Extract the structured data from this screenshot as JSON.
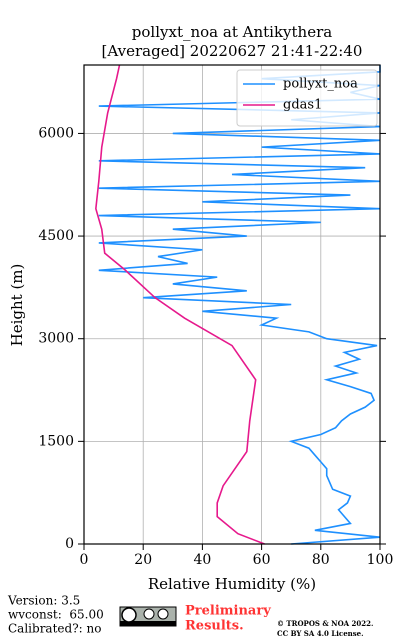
{
  "chart_data": {
    "type": "line",
    "title": "pollyxt_noa at Antikythera",
    "subtitle": "[Averaged] 20220627 21:41-22:40",
    "xlabel": "Relative Humidity (%)",
    "ylabel": "Height (m)",
    "xlim": [
      0,
      100
    ],
    "xticks": [
      0,
      20,
      40,
      60,
      80,
      100
    ],
    "ylim": [
      0,
      7000
    ],
    "yticks": [
      0,
      1500,
      3000,
      4500,
      6000
    ],
    "grid": true,
    "legend": "upper right",
    "series": [
      {
        "name": "pollyxt_noa",
        "color": "#1e90ff",
        "heights": [
          0,
          100,
          200,
          300,
          400,
          500,
          600,
          700,
          800,
          900,
          1000,
          1100,
          1200,
          1300,
          1400,
          1500,
          1600,
          1700,
          1800,
          1900,
          2000,
          2100,
          2200,
          2300,
          2400,
          2500,
          2600,
          2700,
          2800,
          2900,
          3000,
          3100,
          3200,
          3300,
          3400,
          3500,
          3600,
          3700,
          3800,
          3900,
          4000,
          4100,
          4200,
          4300,
          4400,
          4500,
          4600,
          4700,
          4800,
          4900,
          5000,
          5100,
          5200,
          5300,
          5400,
          5500,
          5600,
          5700,
          5800,
          5900,
          6000,
          6100,
          6200,
          6300,
          6400,
          6500,
          6600,
          6700,
          6800,
          6900,
          7000
        ],
        "values": [
          70,
          100,
          78,
          90,
          88,
          86,
          89,
          90,
          84,
          83,
          82,
          82,
          80,
          78,
          76,
          70,
          80,
          85,
          87,
          90,
          95,
          98,
          97,
          90,
          82,
          92,
          85,
          93,
          88,
          99,
          82,
          76,
          60,
          65,
          40,
          70,
          20,
          55,
          30,
          45,
          5,
          35,
          25,
          40,
          5,
          55,
          30,
          80,
          5,
          100,
          40,
          90,
          5,
          100,
          50,
          95,
          5,
          100,
          60,
          100,
          30,
          100,
          70,
          100,
          5,
          100,
          90,
          100,
          60,
          100,
          100
        ]
      },
      {
        "name": "gdas1",
        "color": "#e6198c",
        "heights": [
          0,
          150,
          400,
          600,
          850,
          1350,
          1800,
          2400,
          2900,
          3300,
          3600,
          4000,
          4250,
          4600,
          4900,
          5300,
          5800,
          6300,
          6800,
          7000
        ],
        "values": [
          61,
          52,
          45,
          45,
          47,
          55,
          56,
          58,
          50,
          34,
          24,
          14,
          7,
          6,
          4,
          5,
          6,
          8,
          11,
          12
        ]
      }
    ]
  },
  "footer": {
    "version": "Version: 3.5",
    "wvconst": "wvconst:  65.00",
    "calibrated": "Calibrated?: no",
    "preliminary": [
      "Preliminary",
      "Results."
    ],
    "license": [
      "© TROPOS & NOA 2022.",
      "CC BY SA 4.0 License."
    ]
  }
}
